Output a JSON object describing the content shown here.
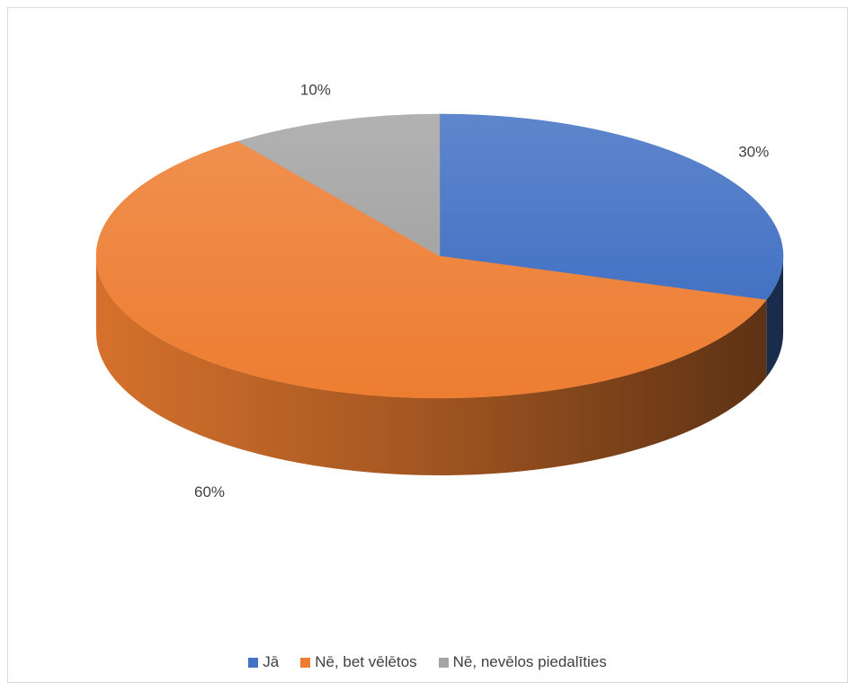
{
  "chart_data": {
    "type": "pie",
    "title": "",
    "style": "3d",
    "categories": [
      "Jā",
      "Nē, bet vēlētos",
      "Nē, nevēlos piedalīties"
    ],
    "values": [
      30,
      60,
      10
    ],
    "value_labels": [
      "30%",
      "60%",
      "10%"
    ],
    "colors": [
      "#4472c4",
      "#ed7d31",
      "#a5a5a5"
    ],
    "start_angle_deg": 0,
    "direction": "clockwise",
    "legend_position": "bottom"
  }
}
